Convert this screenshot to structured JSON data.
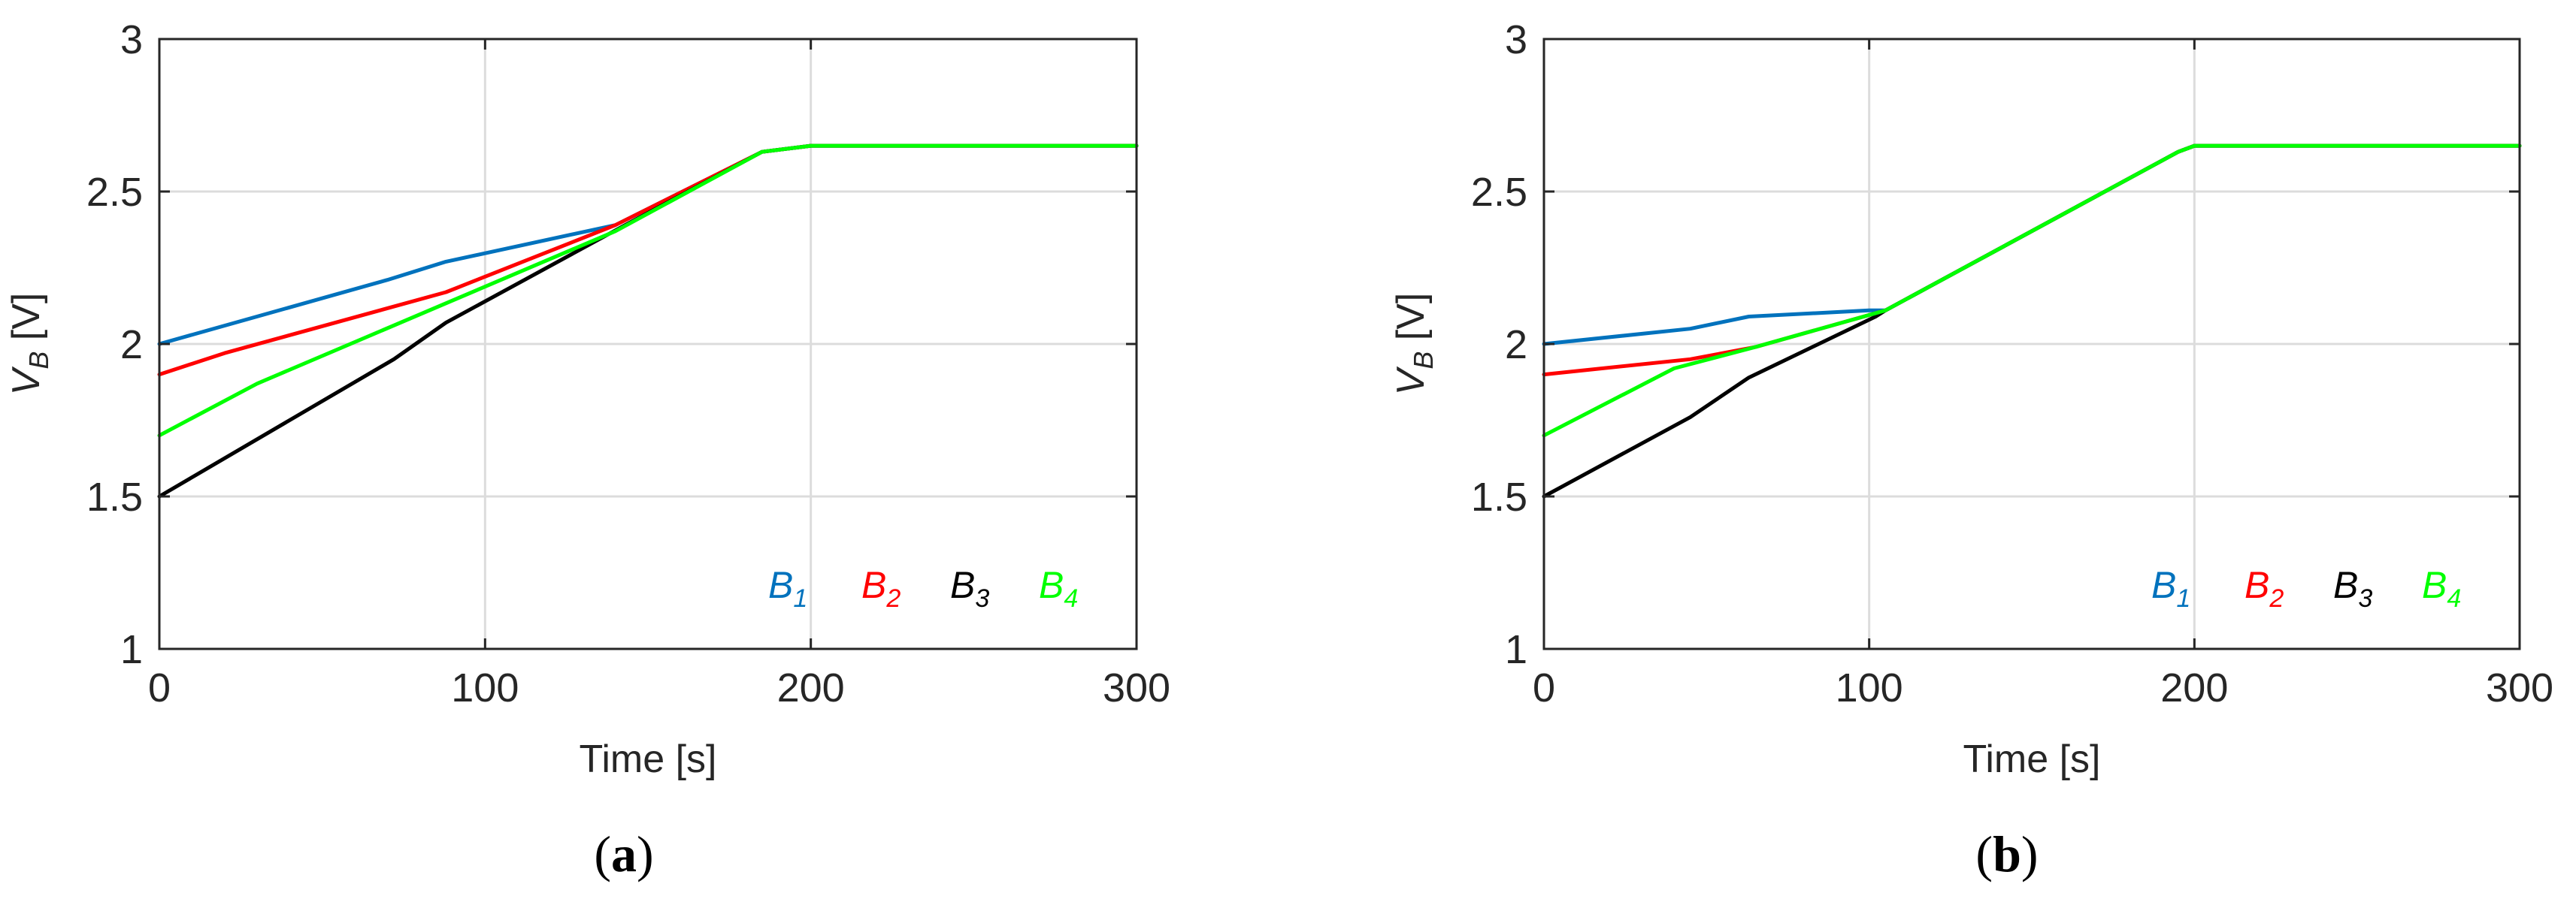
{
  "chart_data": [
    {
      "type": "line",
      "panel": "a",
      "caption": {
        "open": "(",
        "letter": "a",
        "close": ")"
      },
      "xlabel": "Time [s]",
      "ylabel_main": "V",
      "ylabel_sub": "B",
      "ylabel_unit": " [V]",
      "xlim": [
        0,
        300
      ],
      "ylim": [
        1,
        3
      ],
      "xticks": [
        0,
        100,
        200,
        300
      ],
      "yticks": [
        1,
        1.5,
        2,
        2.5,
        3
      ],
      "xtick_labels": [
        "0",
        "100",
        "200",
        "300"
      ],
      "ytick_labels": [
        "1",
        "1.5",
        "2",
        "2.5",
        "3"
      ],
      "grid": true,
      "legend_position": "bottom-right",
      "series": [
        {
          "name": "B",
          "sub": "1",
          "color": "#0072BD",
          "x": [
            0,
            70,
            88,
            140,
            185,
            200,
            300
          ],
          "y": [
            2.0,
            2.21,
            2.27,
            2.39,
            2.63,
            2.65,
            2.65
          ]
        },
        {
          "name": "B",
          "sub": "2",
          "color": "#FF0000",
          "x": [
            0,
            20,
            88,
            140,
            185,
            200,
            300
          ],
          "y": [
            1.9,
            1.97,
            2.17,
            2.39,
            2.63,
            2.65,
            2.65
          ]
        },
        {
          "name": "B",
          "sub": "3",
          "color": "#000000",
          "x": [
            0,
            72,
            88,
            143,
            185,
            200,
            300
          ],
          "y": [
            1.5,
            1.95,
            2.07,
            2.39,
            2.63,
            2.65,
            2.65
          ]
        },
        {
          "name": "B",
          "sub": "4",
          "color": "#00FF00",
          "x": [
            0,
            30,
            140,
            185,
            200,
            300
          ],
          "y": [
            1.7,
            1.87,
            2.37,
            2.63,
            2.65,
            2.65
          ]
        }
      ]
    },
    {
      "type": "line",
      "panel": "b",
      "caption": {
        "open": "(",
        "letter": "b",
        "close": ")"
      },
      "xlabel": "Time [s]",
      "ylabel_main": "V",
      "ylabel_sub": "B",
      "ylabel_unit": " [V]",
      "xlim": [
        0,
        300
      ],
      "ylim": [
        1,
        3
      ],
      "xticks": [
        0,
        100,
        200,
        300
      ],
      "yticks": [
        1,
        1.5,
        2,
        2.5,
        3
      ],
      "xtick_labels": [
        "0",
        "100",
        "200",
        "300"
      ],
      "ytick_labels": [
        "1",
        "1.5",
        "2",
        "2.5",
        "3"
      ],
      "grid": true,
      "legend_position": "bottom-right",
      "series": [
        {
          "name": "B",
          "sub": "1",
          "color": "#0072BD",
          "x": [
            0,
            45,
            63,
            100,
            105,
            195,
            200,
            300
          ],
          "y": [
            2.0,
            2.05,
            2.09,
            2.11,
            2.11,
            2.63,
            2.65,
            2.65
          ]
        },
        {
          "name": "B",
          "sub": "2",
          "color": "#FF0000",
          "x": [
            0,
            45,
            65,
            105,
            195,
            200,
            300
          ],
          "y": [
            1.9,
            1.95,
            1.99,
            2.11,
            2.63,
            2.65,
            2.65
          ]
        },
        {
          "name": "B",
          "sub": "3",
          "color": "#000000",
          "x": [
            0,
            45,
            63,
            102,
            105,
            195,
            200,
            300
          ],
          "y": [
            1.5,
            1.76,
            1.89,
            2.09,
            2.11,
            2.63,
            2.65,
            2.65
          ]
        },
        {
          "name": "B",
          "sub": "4",
          "color": "#00FF00",
          "x": [
            0,
            40,
            65,
            105,
            195,
            200,
            300
          ],
          "y": [
            1.7,
            1.92,
            1.99,
            2.11,
            2.63,
            2.65,
            2.65
          ]
        }
      ]
    }
  ]
}
